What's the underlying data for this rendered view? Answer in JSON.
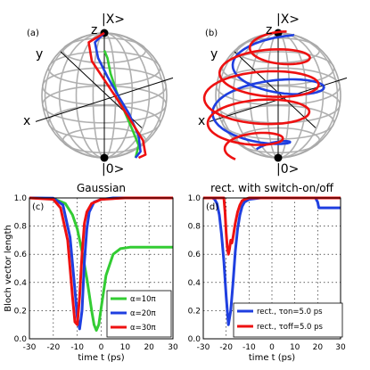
{
  "panels": {
    "a": {
      "label": "(a)",
      "top_state": "|X>",
      "bottom_state": "|0>",
      "axis_x": "x",
      "axis_y": "y",
      "axis_z": "z",
      "paths": [
        {
          "color": "#33cc33",
          "points": [
            [
              0,
              0.72
            ],
            [
              0.05,
              0.6
            ],
            [
              0.1,
              0.35
            ],
            [
              0.2,
              0.05
            ],
            [
              0.32,
              -0.25
            ],
            [
              0.45,
              -0.55
            ],
            [
              0.55,
              -0.8
            ],
            [
              0.5,
              -1.0
            ]
          ]
        },
        {
          "color": "#1f3fe0",
          "points": [
            [
              0,
              1
            ],
            [
              -0.15,
              0.85
            ],
            [
              -0.1,
              0.6
            ],
            [
              0.05,
              0.3
            ],
            [
              0.22,
              0.0
            ],
            [
              0.4,
              -0.3
            ],
            [
              0.55,
              -0.65
            ],
            [
              0.58,
              -0.9
            ],
            [
              0.5,
              -1.0
            ]
          ]
        },
        {
          "color": "#ee1111",
          "points": [
            [
              0,
              1
            ],
            [
              -0.25,
              0.85
            ],
            [
              -0.2,
              0.55
            ],
            [
              0,
              0.25
            ],
            [
              0.2,
              -0.05
            ],
            [
              0.42,
              -0.4
            ],
            [
              0.62,
              -0.72
            ],
            [
              0.66,
              -0.95
            ],
            [
              0.55,
              -1.0
            ]
          ]
        }
      ]
    },
    "b": {
      "label": "(b)",
      "top_state": "|X>",
      "bottom_state": "|0>",
      "axis_x": "x",
      "axis_y": "y",
      "axis_z": "z"
    }
  },
  "chart_data": [
    {
      "type": "line",
      "panel_label": "(c)",
      "title": "Gaussian",
      "xlabel": "time t (ps)",
      "ylabel": "Bloch vector length",
      "xlim": [
        -30,
        30
      ],
      "ylim": [
        0,
        1
      ],
      "xticks": [
        "-30",
        "-20",
        "-10",
        "0",
        "10",
        "20",
        "30"
      ],
      "yticks": [
        "0.0",
        "0.2",
        "0.4",
        "0.6",
        "0.8",
        "1.0"
      ],
      "grid": true,
      "legend_position": "bottom-right",
      "series": [
        {
          "name": "α=10π",
          "color": "#33cc33",
          "x": [
            -30,
            -20,
            -15,
            -12,
            -10,
            -8,
            -6,
            -4,
            -3,
            -2,
            -1,
            0,
            2,
            5,
            8,
            12,
            20,
            30
          ],
          "y": [
            1.0,
            0.995,
            0.96,
            0.88,
            0.78,
            0.62,
            0.43,
            0.2,
            0.1,
            0.06,
            0.1,
            0.22,
            0.45,
            0.6,
            0.64,
            0.65,
            0.65,
            0.65
          ]
        },
        {
          "name": "α=20π",
          "color": "#1f3fe0",
          "x": [
            -30,
            -20,
            -16,
            -13,
            -11,
            -10,
            -9,
            -8,
            -7,
            -6,
            -5,
            -3,
            0,
            5,
            10,
            30
          ],
          "y": [
            1.0,
            0.998,
            0.95,
            0.72,
            0.35,
            0.15,
            0.07,
            0.2,
            0.55,
            0.78,
            0.9,
            0.97,
            0.99,
            1.0,
            1.0,
            1.0
          ]
        },
        {
          "name": "α=30π",
          "color": "#ee1111",
          "x": [
            -30,
            -20,
            -17,
            -14,
            -13,
            -12,
            -11,
            -10,
            -9,
            -8,
            -7,
            -6,
            -4,
            0,
            10,
            30
          ],
          "y": [
            1.0,
            0.99,
            0.93,
            0.7,
            0.5,
            0.3,
            0.12,
            0.1,
            0.3,
            0.6,
            0.82,
            0.9,
            0.96,
            0.99,
            1.0,
            1.0
          ]
        }
      ]
    },
    {
      "type": "line",
      "panel_label": "(d)",
      "title": "rect. with switch-on/off",
      "xlabel": "time t (ps)",
      "ylabel": "",
      "xlim": [
        -30,
        30
      ],
      "ylim": [
        0,
        1
      ],
      "xticks": [
        "-30",
        "-20",
        "-10",
        "0",
        "10",
        "20",
        "30"
      ],
      "yticks": [
        "0.0",
        "0.2",
        "0.4",
        "0.6",
        "0.8",
        "1.0"
      ],
      "grid": true,
      "legend_position": "bottom-right",
      "series": [
        {
          "name": "rect., τon=5.0 ps",
          "color": "#1f3fe0",
          "x": [
            -30,
            -26,
            -25,
            -24,
            -23,
            -22,
            -21,
            -20,
            -19,
            -18,
            -17,
            -16,
            -15,
            -14,
            -13,
            -12,
            -10,
            -5,
            0,
            10,
            19,
            20,
            20.5,
            30
          ],
          "y": [
            1.0,
            1.0,
            0.99,
            0.96,
            0.88,
            0.74,
            0.55,
            0.3,
            0.1,
            0.2,
            0.4,
            0.62,
            0.78,
            0.88,
            0.94,
            0.97,
            0.99,
            1.0,
            1.0,
            1.0,
            1.0,
            0.97,
            0.93,
            0.93
          ]
        },
        {
          "name": "rect., τoff=5.0 ps",
          "color": "#ee1111",
          "x": [
            -30,
            -21,
            -20.5,
            -20,
            -19.5,
            -19,
            -18.5,
            -18,
            -17.5,
            -17,
            -16,
            -15,
            -14,
            -13,
            -12,
            -10,
            -5,
            0,
            10,
            20,
            30
          ],
          "y": [
            1.0,
            1.0,
            0.9,
            0.75,
            0.65,
            0.6,
            0.64,
            0.7,
            0.68,
            0.72,
            0.82,
            0.9,
            0.95,
            0.98,
            0.99,
            1.0,
            1.0,
            1.0,
            1.0,
            1.0,
            1.0
          ]
        }
      ]
    }
  ]
}
